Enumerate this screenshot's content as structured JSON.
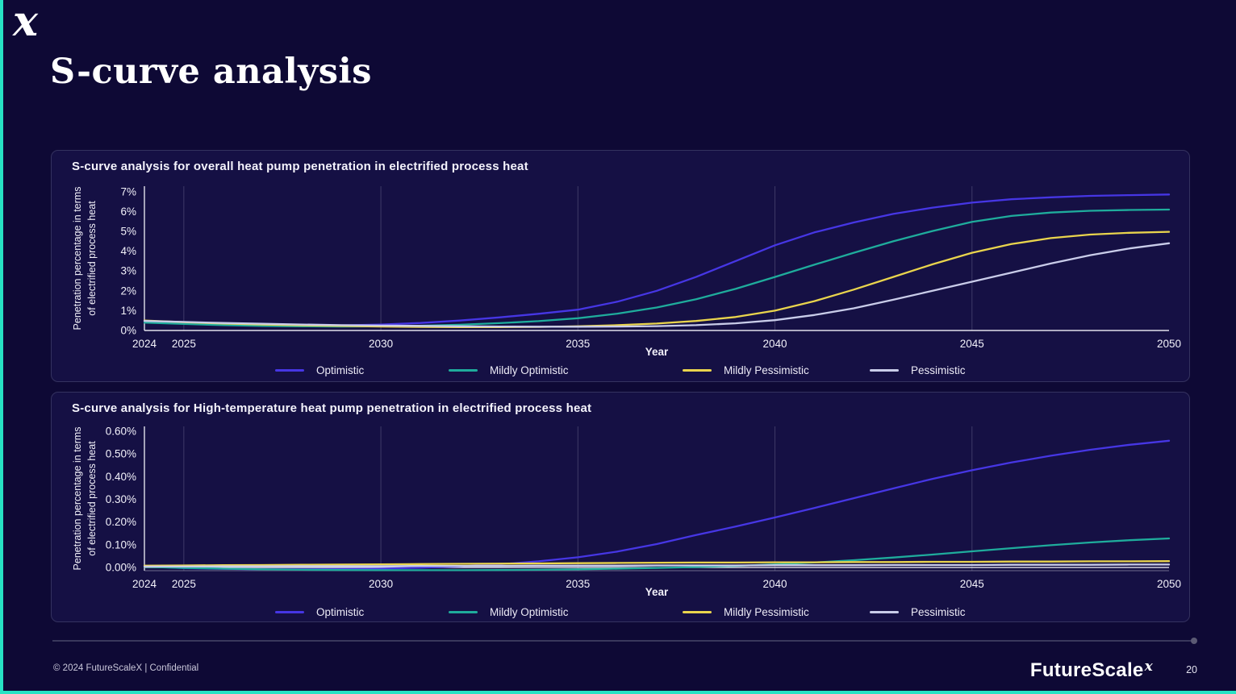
{
  "slide": {
    "logo_mark": "x",
    "title": "S-curve analysis"
  },
  "footer": {
    "copyright": "© 2024 FutureScaleX | Confidential",
    "brand": "FutureScale",
    "brand_sup": "x",
    "page_number": "20"
  },
  "chart_data": [
    {
      "type": "line",
      "title": "S-curve analysis for overall heat pump penetration in electrified process heat",
      "xlabel": "Year",
      "ylabel_lines": [
        "Penetration percentage in terms",
        "of electrified process heat"
      ],
      "x": [
        2024,
        2025,
        2026,
        2027,
        2028,
        2029,
        2030,
        2031,
        2032,
        2033,
        2034,
        2035,
        2036,
        2037,
        2038,
        2039,
        2040,
        2041,
        2042,
        2043,
        2044,
        2045,
        2046,
        2047,
        2048,
        2049,
        2050
      ],
      "xlim": [
        2024,
        2050
      ],
      "ylim": [
        0,
        7.28
      ],
      "xticks": [
        2024,
        2025,
        2030,
        2035,
        2040,
        2045,
        2050
      ],
      "grid_years": [
        2025,
        2030,
        2035,
        2040,
        2045
      ],
      "ytick_values": [
        0,
        1,
        2,
        3,
        4,
        5,
        6,
        7
      ],
      "ytick_labels": [
        "0%",
        "1%",
        "2%",
        "3%",
        "4%",
        "5%",
        "6%",
        "7%"
      ],
      "grid": "vertical-only",
      "legend_position": "bottom",
      "series": [
        {
          "name": "Optimistic",
          "color": "#4636e4",
          "values": [
            0.45,
            0.36,
            0.3,
            0.26,
            0.25,
            0.26,
            0.3,
            0.38,
            0.5,
            0.66,
            0.84,
            1.05,
            1.45,
            2.0,
            2.7,
            3.5,
            4.3,
            4.95,
            5.45,
            5.88,
            6.2,
            6.45,
            6.62,
            6.72,
            6.79,
            6.83,
            6.86
          ]
        },
        {
          "name": "Mildly Optimistic",
          "color": "#1fac9c",
          "values": [
            0.4,
            0.33,
            0.27,
            0.23,
            0.21,
            0.2,
            0.21,
            0.24,
            0.29,
            0.37,
            0.47,
            0.62,
            0.85,
            1.16,
            1.58,
            2.1,
            2.7,
            3.32,
            3.92,
            4.5,
            5.02,
            5.48,
            5.78,
            5.95,
            6.04,
            6.08,
            6.1
          ]
        },
        {
          "name": "Mildly Pessimistic",
          "color": "#e9d44d",
          "values": [
            0.5,
            0.42,
            0.35,
            0.3,
            0.26,
            0.23,
            0.2,
            0.18,
            0.17,
            0.17,
            0.18,
            0.21,
            0.27,
            0.35,
            0.48,
            0.68,
            1.0,
            1.48,
            2.06,
            2.7,
            3.34,
            3.92,
            4.36,
            4.66,
            4.84,
            4.93,
            4.98
          ]
        },
        {
          "name": "Pessimistic",
          "color": "#c9cce9",
          "values": [
            0.48,
            0.43,
            0.38,
            0.34,
            0.3,
            0.27,
            0.25,
            0.23,
            0.21,
            0.2,
            0.19,
            0.19,
            0.2,
            0.22,
            0.27,
            0.36,
            0.52,
            0.78,
            1.12,
            1.55,
            2.0,
            2.46,
            2.92,
            3.38,
            3.8,
            4.14,
            4.4
          ]
        }
      ]
    },
    {
      "type": "line",
      "title": "S-curve analysis for High-temperature heat pump penetration in electrified process heat",
      "xlabel": "Year",
      "ylabel_lines": [
        "Penetration percentage in terms",
        "of electrified process heat"
      ],
      "x": [
        2024,
        2025,
        2026,
        2027,
        2028,
        2029,
        2030,
        2031,
        2032,
        2033,
        2034,
        2035,
        2036,
        2037,
        2038,
        2039,
        2040,
        2041,
        2042,
        2043,
        2044,
        2045,
        2046,
        2047,
        2048,
        2049,
        2050
      ],
      "xlim": [
        2024,
        2050
      ],
      "ylim": [
        -0.014,
        0.621
      ],
      "xticks": [
        2024,
        2025,
        2030,
        2035,
        2040,
        2045,
        2050
      ],
      "grid_years": [
        2025,
        2030,
        2035,
        2040,
        2045
      ],
      "ytick_values": [
        0,
        0.1,
        0.2,
        0.3,
        0.4,
        0.5,
        0.6
      ],
      "ytick_labels": [
        "0.00%",
        "0.10%",
        "0.20%",
        "0.30%",
        "0.40%",
        "0.50%",
        "0.60%"
      ],
      "grid": "vertical-only",
      "legend_position": "bottom",
      "series": [
        {
          "name": "Optimistic",
          "color": "#4636e4",
          "values": [
            0.005,
            -0.003,
            -0.006,
            -0.008,
            -0.008,
            -0.007,
            -0.005,
            -0.001,
            0.005,
            0.014,
            0.027,
            0.045,
            0.07,
            0.103,
            0.143,
            0.18,
            0.22,
            0.262,
            0.305,
            0.348,
            0.39,
            0.428,
            0.462,
            0.492,
            0.518,
            0.54,
            0.558
          ]
        },
        {
          "name": "Mildly Optimistic",
          "color": "#1fac9c",
          "values": [
            0.003,
            -0.002,
            -0.005,
            -0.008,
            -0.01,
            -0.011,
            -0.012,
            -0.012,
            -0.012,
            -0.011,
            -0.01,
            -0.008,
            -0.005,
            -0.002,
            0.002,
            0.007,
            0.014,
            0.022,
            0.032,
            0.044,
            0.057,
            0.071,
            0.085,
            0.098,
            0.11,
            0.12,
            0.128
          ]
        },
        {
          "name": "Mildly Pessimistic",
          "color": "#e9d44d",
          "values": [
            0.008,
            0.009,
            0.01,
            0.011,
            0.012,
            0.013,
            0.014,
            0.015,
            0.016,
            0.017,
            0.018,
            0.019,
            0.02,
            0.021,
            0.022,
            0.022,
            0.023,
            0.023,
            0.024,
            0.024,
            0.025,
            0.025,
            0.026,
            0.026,
            0.027,
            0.027,
            0.028
          ]
        },
        {
          "name": "Pessimistic",
          "color": "#c9cce9",
          "values": [
            0.004,
            0.004,
            0.005,
            0.005,
            0.006,
            0.006,
            0.006,
            0.007,
            0.007,
            0.007,
            0.008,
            0.008,
            0.008,
            0.009,
            0.009,
            0.009,
            0.01,
            0.01,
            0.01,
            0.011,
            0.011,
            0.011,
            0.012,
            0.012,
            0.012,
            0.013,
            0.013
          ]
        }
      ]
    }
  ]
}
